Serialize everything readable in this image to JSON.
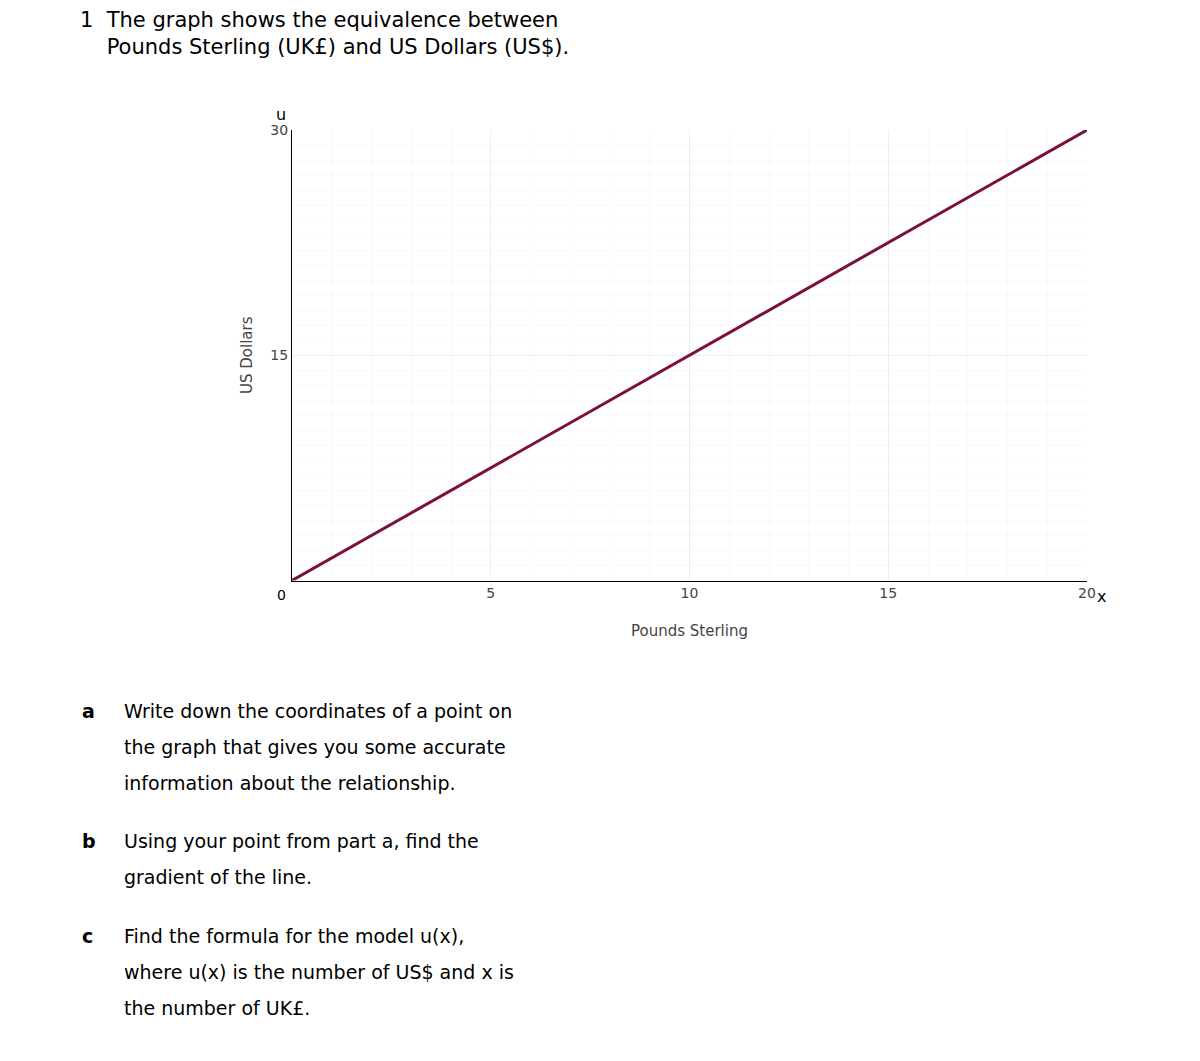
{
  "chart_data": {
    "type": "line",
    "title": [
      "1  The graph shows the equivalence between",
      "    Pounds Sterling (UK£) and US Dollars (US$)."
    ],
    "x_label": "Pounds Sterling",
    "y_label": "US Dollars",
    "x": [
      0,
      20
    ],
    "values": [
      0,
      30
    ],
    "color": "#7B1040",
    "xlim": [
      0,
      20
    ],
    "ylim": [
      0,
      30
    ],
    "xticks": [
      5,
      10,
      15,
      20
    ],
    "yticks": [
      15,
      30
    ],
    "grid": true,
    "annotations": [
      {
        "text": "u"
      },
      {
        "text": "x"
      },
      {
        "text": "0"
      },
      {
        "label": "a",
        "text": [
          "Write down the coordinates of a point on",
          "the graph that gives you some accurate",
          "information about the relationship."
        ]
      },
      {
        "label": "b",
        "text": [
          "Using your point from part a, find the",
          "gradient of the line."
        ]
      },
      {
        "label": "c",
        "text": [
          "Find the formula for the model u(x),",
          "where u(x) is the number of US$ and x is",
          "the number of UK£."
        ]
      }
    ]
  }
}
